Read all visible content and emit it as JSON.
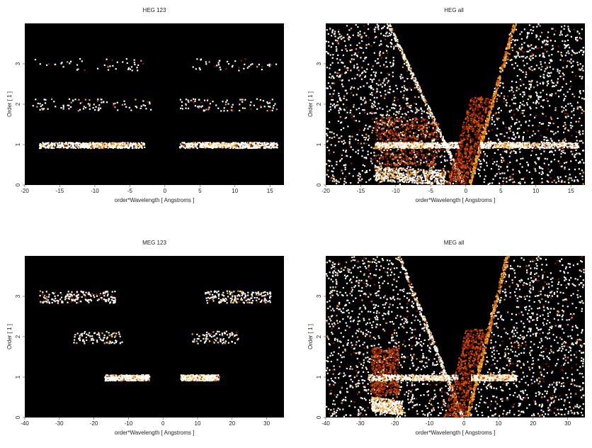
{
  "chart_data": [
    {
      "type": "heatmap",
      "title": "HEG 123",
      "xlabel": "order*Wavelength [ Angstroms ]",
      "ylabel": "Order [ 1 ]",
      "xlim": [
        -20,
        17
      ],
      "ylim": [
        0,
        4
      ],
      "xticks": [
        -20,
        -15,
        -10,
        -5,
        0,
        5,
        10,
        15
      ],
      "yticks": [
        0,
        1,
        2,
        3
      ],
      "background": "#000000",
      "colormap": [
        "#3a0000",
        "#8b1a00",
        "#d35400",
        "#f5a623",
        "#fff3c4",
        "#ffffff"
      ],
      "bands": [
        {
          "order": 1,
          "x_ranges": [
            [
              -18,
              -3
            ],
            [
              2,
              16
            ]
          ],
          "core_ranges": [
            [
              -12,
              -6
            ],
            [
              5,
              10
            ]
          ],
          "density": "high"
        },
        {
          "order": 2,
          "x_ranges": [
            [
              -19,
              -2
            ],
            [
              2,
              16
            ]
          ],
          "density": "low"
        },
        {
          "order": 3,
          "x_ranges": [
            [
              -19,
              -3
            ],
            [
              3,
              16
            ]
          ],
          "density": "sparse"
        }
      ],
      "wedge": false
    },
    {
      "type": "heatmap",
      "title": "HEG all",
      "xlabel": "order*Wavelength [ Angstroms ]",
      "ylabel": "Order [ 1 ]",
      "xlim": [
        -20,
        17
      ],
      "ylim": [
        0,
        4
      ],
      "xticks": [
        -20,
        -15,
        -10,
        -5,
        0,
        5,
        10,
        15
      ],
      "yticks": [
        0,
        1,
        2,
        3
      ],
      "background": "#000000",
      "colormap": [
        "#3a0000",
        "#8b1a00",
        "#d35400",
        "#f5a623",
        "#fff3c4",
        "#ffffff"
      ],
      "bands": [
        {
          "order": 1,
          "x_ranges": [
            [
              -13,
              -1
            ],
            [
              2,
              16
            ]
          ],
          "core_ranges": [
            [
              -13,
              -5
            ],
            [
              4,
              9
            ]
          ],
          "density": "high"
        }
      ],
      "wedge": true,
      "wedge_slopes": {
        "left_edge": -6.5,
        "right_edge": 2.8
      },
      "low_order_stripe": {
        "y": 0.3,
        "x_range": [
          -13,
          -3
        ]
      }
    },
    {
      "type": "heatmap",
      "title": "MEG 123",
      "xlabel": "order*Wavelength [ Angstroms ]",
      "ylabel": "Order [ 1 ]",
      "xlim": [
        -40,
        35
      ],
      "ylim": [
        0,
        4
      ],
      "xticks": [
        -40,
        -30,
        -20,
        -10,
        0,
        10,
        20,
        30
      ],
      "yticks": [
        0,
        1,
        2,
        3
      ],
      "background": "#000000",
      "colormap": [
        "#3a0000",
        "#8b1a00",
        "#d35400",
        "#f5a623",
        "#fff3c4",
        "#ffffff"
      ],
      "bands": [
        {
          "order": 1,
          "x_ranges": [
            [
              -17,
              -4
            ],
            [
              5,
              16
            ]
          ],
          "core_ranges": [
            [
              -13,
              -6
            ],
            [
              6,
              14
            ]
          ],
          "density": "high"
        },
        {
          "order": 2,
          "x_ranges": [
            [
              -26,
              -12
            ],
            [
              8,
              22
            ]
          ],
          "density": "low"
        },
        {
          "order": 3,
          "x_ranges": [
            [
              -36,
              -14
            ],
            [
              12,
              31
            ]
          ],
          "density": "medium"
        }
      ],
      "wedge": false
    },
    {
      "type": "heatmap",
      "title": "MEG all",
      "xlabel": "order*Wavelength [ Angstroms ]",
      "ylabel": "Order [ 1 ]",
      "xlim": [
        -40,
        35
      ],
      "ylim": [
        0,
        4
      ],
      "xticks": [
        -40,
        -30,
        -20,
        -10,
        0,
        10,
        20,
        30
      ],
      "yticks": [
        0,
        1,
        2,
        3
      ],
      "background": "#000000",
      "colormap": [
        "#3a0000",
        "#8b1a00",
        "#d35400",
        "#f5a623",
        "#fff3c4",
        "#ffffff"
      ],
      "bands": [
        {
          "order": 1,
          "x_ranges": [
            [
              -28,
              -2
            ],
            [
              2,
              15
            ]
          ],
          "core_ranges": [
            [
              -15,
              -6
            ],
            [
              4,
              14
            ]
          ],
          "density": "high"
        }
      ],
      "wedge": true,
      "wedge_slopes": {
        "left_edge": -11,
        "right_edge": 5
      },
      "low_order_stripe": {
        "y": 0.35,
        "x_range": [
          -27,
          -18
        ]
      }
    }
  ]
}
